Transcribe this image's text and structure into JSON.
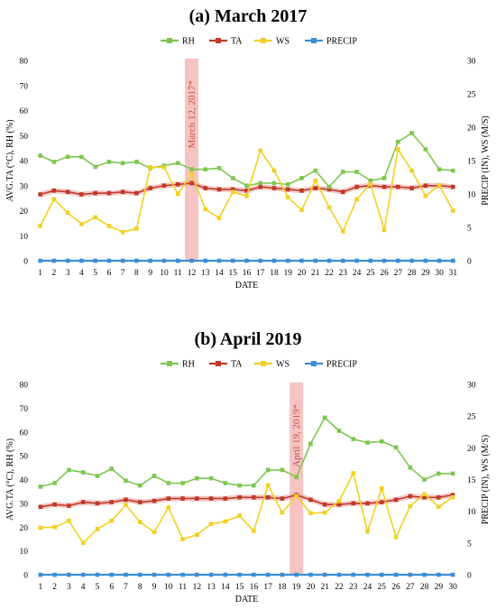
{
  "chart_data": [
    {
      "type": "line",
      "title": "(a) March 2017",
      "xlabel": "DATE",
      "ylabel": "AVG.TA (°C), RH (%)",
      "y2label": "PRECIP (IN), WS (M/S)",
      "ylim": [
        0,
        80
      ],
      "y2lim": [
        0,
        30
      ],
      "yticks": [
        0,
        10,
        20,
        30,
        40,
        50,
        60,
        70,
        80
      ],
      "y2ticks": [
        0,
        5,
        10,
        15,
        20,
        25,
        30
      ],
      "x": [
        1,
        2,
        3,
        4,
        5,
        6,
        7,
        8,
        9,
        10,
        11,
        12,
        13,
        14,
        15,
        16,
        17,
        18,
        19,
        20,
        21,
        22,
        23,
        24,
        25,
        26,
        27,
        28,
        29,
        30,
        31
      ],
      "legend_position": "top",
      "grid": false,
      "highlight": {
        "x": 12,
        "label": "March 12, 2017*",
        "color": "#f4b8b8"
      },
      "series": [
        {
          "name": "RH",
          "axis": "left",
          "color": "#7dc74f",
          "values": [
            42,
            39.5,
            41.5,
            41.5,
            37.5,
            39.5,
            39,
            39.5,
            37,
            38,
            39,
            36.5,
            36.5,
            37,
            33,
            30,
            31,
            31,
            30.5,
            33,
            36,
            29.5,
            35.5,
            35.5,
            32,
            33,
            47.5,
            51,
            44.5,
            36.5,
            36
          ]
        },
        {
          "name": "TA",
          "axis": "left",
          "color": "#c0392b",
          "values": [
            26.5,
            28,
            27.5,
            26.5,
            27,
            27,
            27.5,
            27,
            29,
            30,
            30.5,
            31,
            29,
            28.5,
            28.5,
            28,
            29.5,
            29,
            28.5,
            28,
            29,
            28.5,
            27.5,
            29.5,
            30,
            29.5,
            29.5,
            29,
            30,
            30,
            29.5
          ]
        },
        {
          "name": "WS",
          "axis": "right",
          "color": "#f2d022",
          "values": [
            5.2,
            9.2,
            7.2,
            5.5,
            6.5,
            5.2,
            4.3,
            4.8,
            14,
            14,
            10,
            13,
            7.7,
            6.4,
            10.3,
            9.7,
            16.5,
            13.5,
            9.5,
            7.6,
            12,
            8,
            4.4,
            9.2,
            11.5,
            4.6,
            16.7,
            13.5,
            9.7,
            11.3,
            7.5
          ]
        },
        {
          "name": "PRECIP",
          "axis": "right",
          "color": "#3b8ed6",
          "values": [
            0,
            0,
            0,
            0,
            0,
            0,
            0,
            0,
            0,
            0,
            0,
            0,
            0,
            0,
            0,
            0,
            0,
            0,
            0,
            0,
            0,
            0,
            0,
            0,
            0,
            0,
            0,
            0,
            0,
            0,
            0
          ]
        }
      ]
    },
    {
      "type": "line",
      "title": "(b) April 2019",
      "xlabel": "DATE",
      "ylabel": "AVG.TA (°C), RH (%)",
      "y2label": "PRECIP (IN), WS (M/S)",
      "ylim": [
        0,
        80
      ],
      "y2lim": [
        0,
        30
      ],
      "yticks": [
        0,
        10,
        20,
        30,
        40,
        50,
        60,
        70,
        80
      ],
      "y2ticks": [
        0,
        5,
        10,
        15,
        20,
        25,
        30
      ],
      "x": [
        1,
        2,
        3,
        4,
        5,
        6,
        7,
        8,
        9,
        10,
        11,
        12,
        13,
        14,
        15,
        16,
        17,
        18,
        19,
        20,
        21,
        22,
        23,
        24,
        25,
        26,
        27,
        28,
        29,
        30
      ],
      "legend_position": "top",
      "grid": false,
      "highlight": {
        "x": 19,
        "label": "April 19, 2019*",
        "color": "#f4b8b8"
      },
      "series": [
        {
          "name": "RH",
          "axis": "left",
          "color": "#7dc74f",
          "values": [
            37,
            38.5,
            44,
            43,
            41.5,
            44.5,
            39.5,
            37.5,
            41.5,
            38.5,
            38.5,
            40.5,
            40.5,
            38.5,
            37.5,
            37.5,
            44,
            44,
            41,
            55,
            66,
            60.5,
            57,
            55.5,
            56,
            53.5,
            45,
            40,
            42.5,
            42.5
          ]
        },
        {
          "name": "TA",
          "axis": "left",
          "color": "#c0392b",
          "values": [
            28.5,
            29.5,
            29,
            30.5,
            30,
            30.5,
            31.5,
            30.5,
            31,
            32,
            32,
            32,
            32,
            32,
            32.5,
            32.5,
            32.5,
            32,
            33.5,
            31.5,
            29.5,
            29.5,
            30,
            30,
            30.5,
            31.5,
            33,
            32.5,
            32.5,
            33.5
          ]
        },
        {
          "name": "WS",
          "axis": "right",
          "color": "#f2d022",
          "values": [
            7.4,
            7.5,
            8.5,
            5.0,
            7.2,
            8.5,
            11,
            8.3,
            6.7,
            10.6,
            5.6,
            6.3,
            8,
            8.4,
            9.3,
            6.9,
            14.1,
            9.8,
            12.4,
            9.7,
            9.8,
            11.6,
            16,
            6.8,
            13.6,
            5.9,
            10.8,
            12.7,
            10.7,
            12.2
          ]
        },
        {
          "name": "PRECIP",
          "axis": "right",
          "color": "#3b8ed6",
          "values": [
            0,
            0,
            0,
            0,
            0,
            0,
            0,
            0,
            0,
            0,
            0,
            0,
            0,
            0,
            0,
            0,
            0,
            0,
            0,
            0,
            0,
            0,
            0,
            0,
            0,
            0,
            0,
            0,
            0,
            0
          ]
        }
      ]
    }
  ]
}
